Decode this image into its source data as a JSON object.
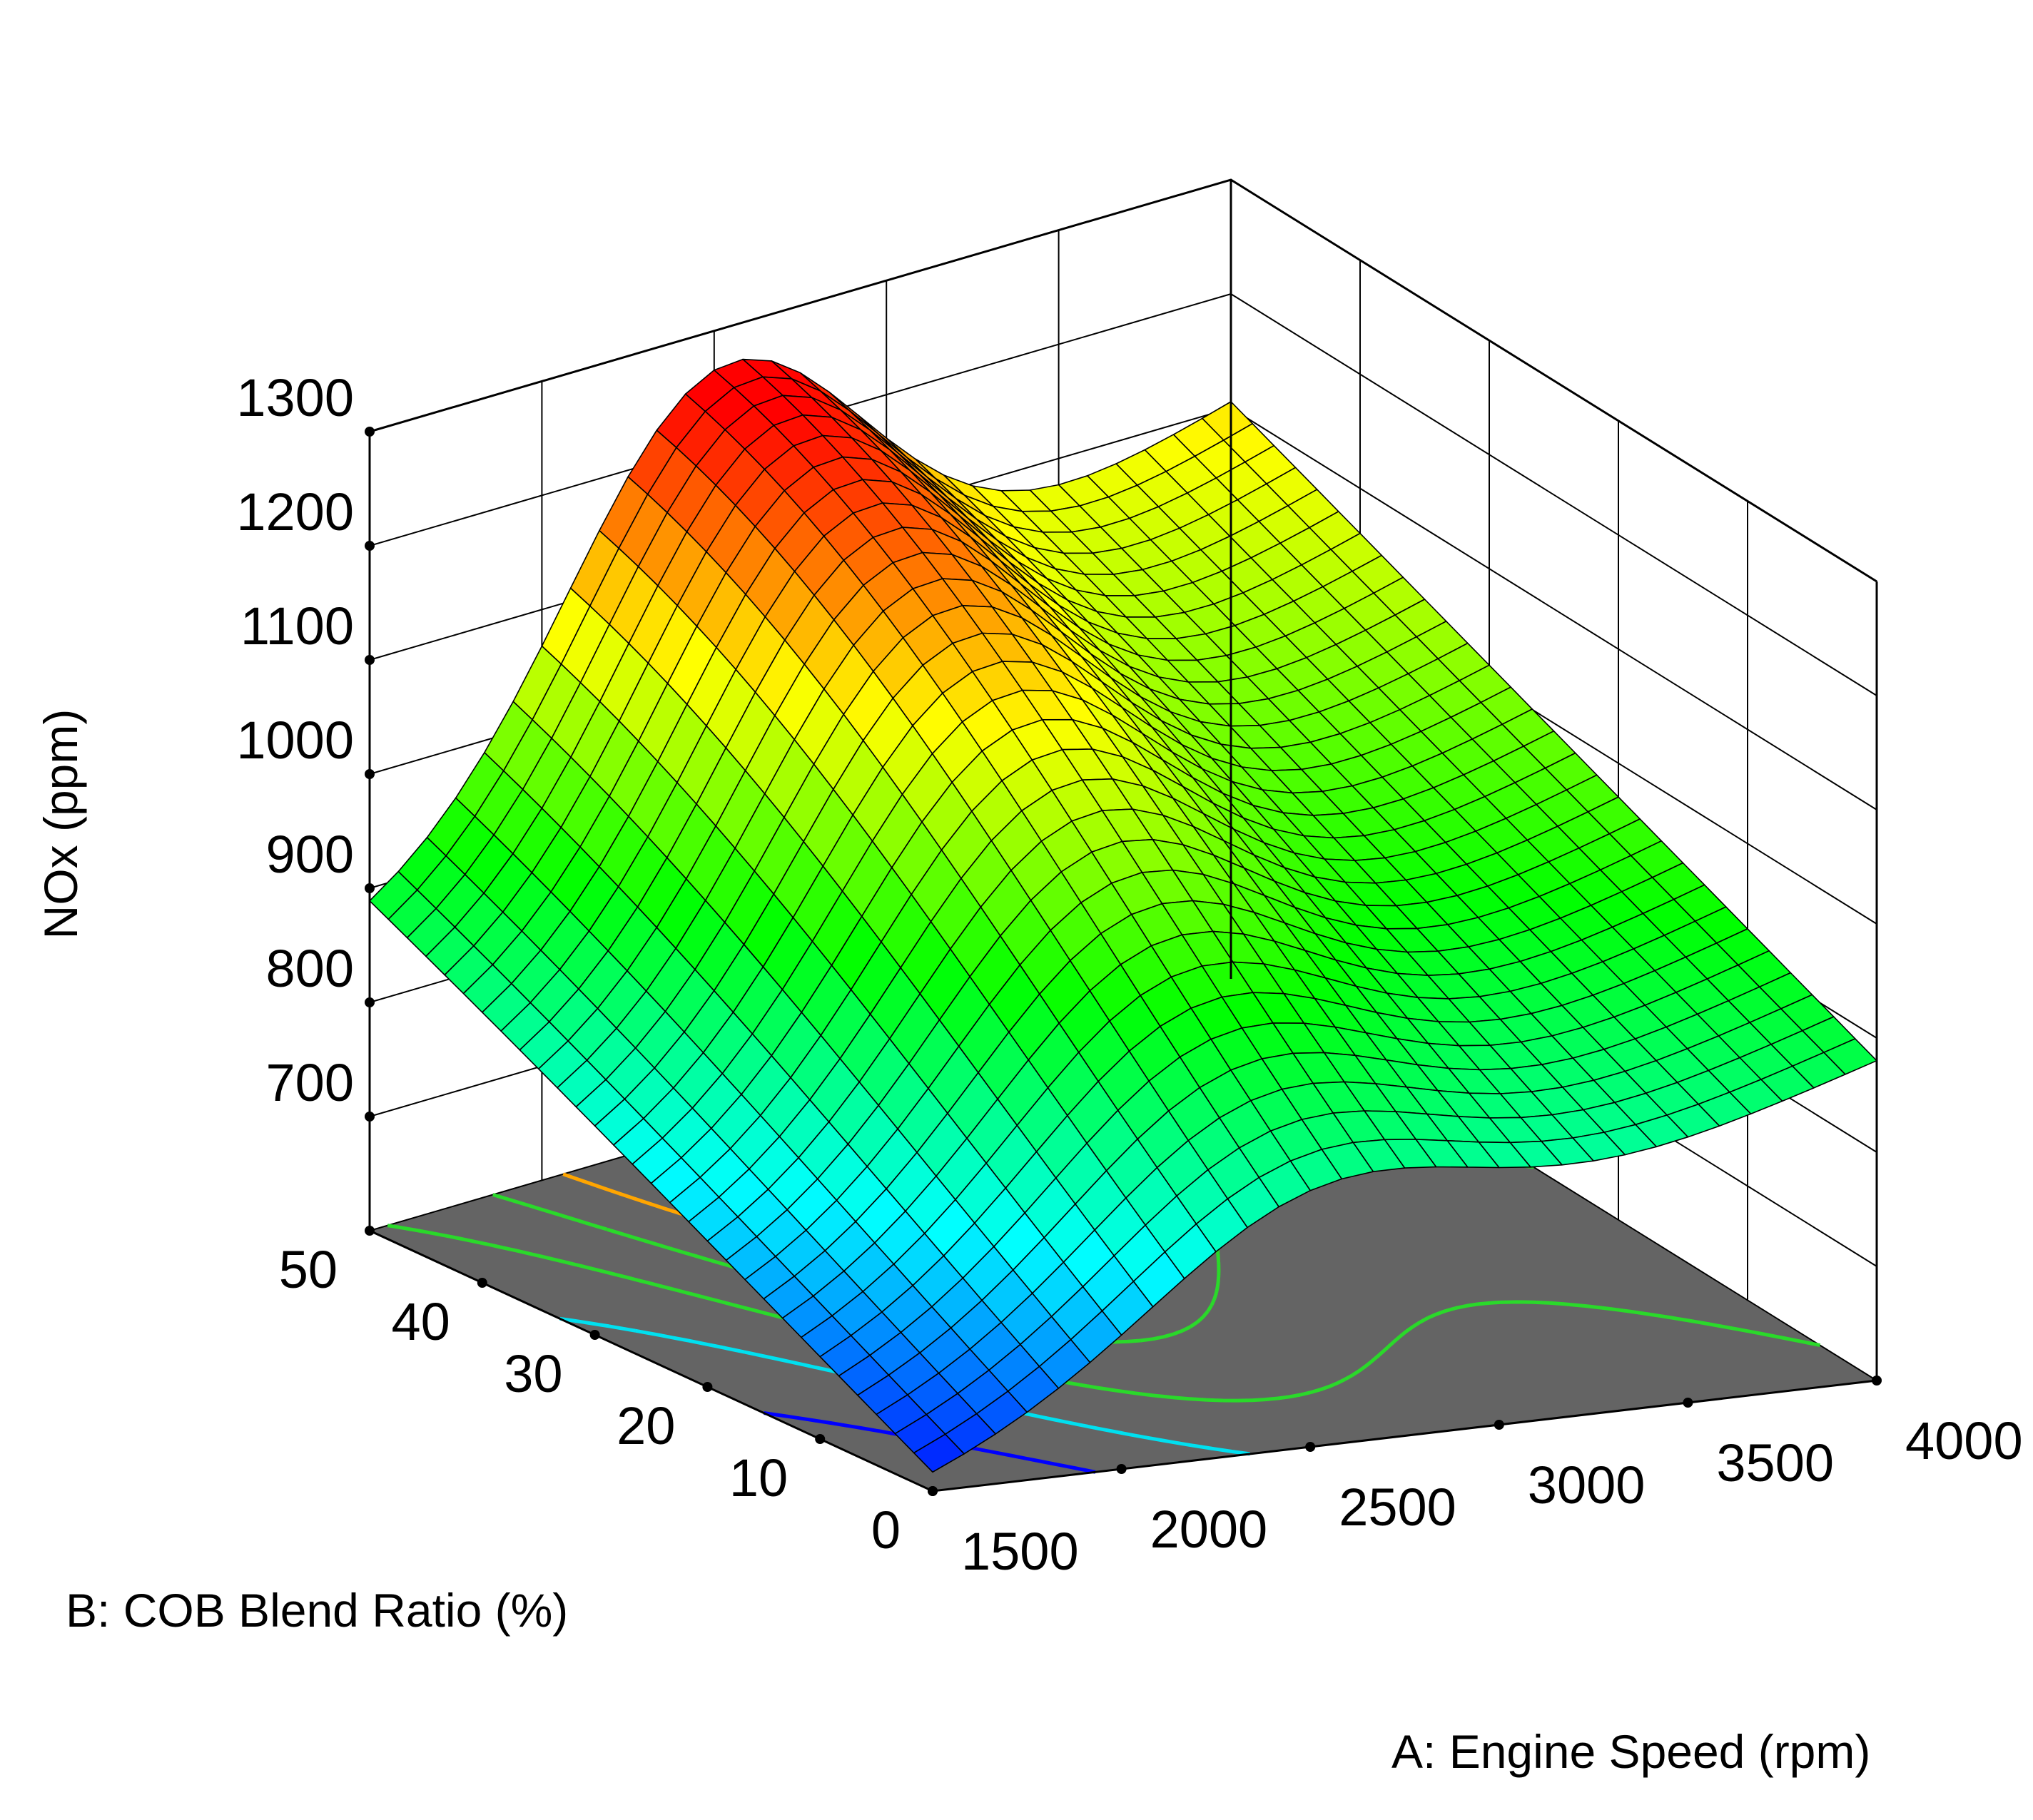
{
  "chart_data": {
    "type": "surface3d",
    "title": "",
    "x_axis": {
      "label": "A: Engine Speed (rpm)",
      "range": [
        1500,
        4000
      ],
      "ticks": [
        "1500",
        "2000",
        "2500",
        "3000",
        "3500",
        "4000"
      ]
    },
    "y_axis": {
      "label": "B: COB Blend Ratio (%)",
      "range": [
        0,
        50
      ],
      "ticks": [
        "0",
        "10",
        "20",
        "30",
        "40",
        "50"
      ]
    },
    "z_axis": {
      "label": "NOx (ppm)",
      "range": [
        600,
        1300
      ],
      "ticks": [
        "700",
        "800",
        "900",
        "1000",
        "1100",
        "1200",
        "1300"
      ]
    },
    "surface_corners": [
      {
        "engine_speed": 1500,
        "blend_ratio": 0,
        "nox": 610
      },
      {
        "engine_speed": 1500,
        "blend_ratio": 50,
        "nox": 870
      },
      {
        "engine_speed": 4000,
        "blend_ratio": 0,
        "nox": 880
      },
      {
        "engine_speed": 4000,
        "blend_ratio": 50,
        "nox": 1105
      }
    ],
    "surface_peak": {
      "engine_speed": 2500,
      "blend_ratio": 45,
      "nox": 1245
    },
    "contour_levels": [
      {
        "nox": 700,
        "color": "#0000ff"
      },
      {
        "nox": 800,
        "color": "#00e0f0"
      },
      {
        "nox": 900,
        "color": "#2ad92a"
      },
      {
        "nox": 1000,
        "color": "#2ad92a"
      },
      {
        "nox": 1100,
        "color": "#ffa500"
      }
    ],
    "colormap": [
      "#0000ff",
      "#00ffff",
      "#00ff00",
      "#ffff00",
      "#ff0000"
    ],
    "floor_color": "#646464"
  }
}
